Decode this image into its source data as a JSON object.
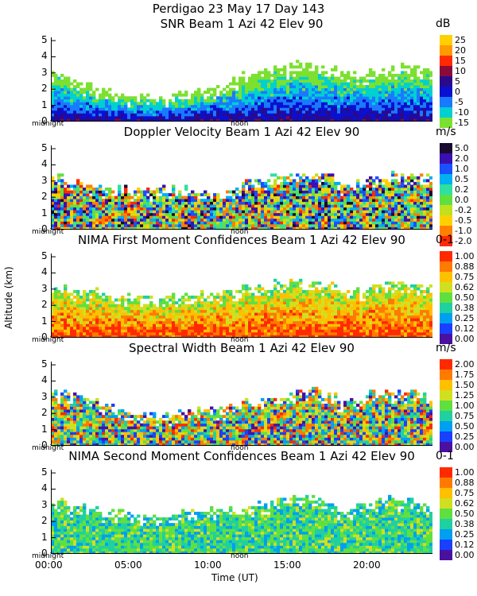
{
  "header": {
    "line1": "Perdigao  23 May 17 Day 143"
  },
  "axes": {
    "y_label": "Altitude (km)",
    "x_label": "Time (UT)",
    "x_ticks": [
      "00:00",
      "05:00",
      "10:00",
      "15:00",
      "20:00"
    ],
    "y_ticks": [
      "0",
      "1",
      "2",
      "3",
      "4",
      "5"
    ],
    "midnight_label": "midnight",
    "noon_label": "noon"
  },
  "chart_data": [
    {
      "type": "heatmap",
      "title": "SNR Beam 1 Azi  42 Elev 90",
      "unit": "dB",
      "xlabel": "Time (UT)",
      "ylabel": "Altitude (km)",
      "xlim": [
        0,
        24
      ],
      "ylim": [
        0,
        5.2
      ],
      "colorbar_labels": [
        "25",
        "20",
        "15",
        "10",
        "5",
        "0",
        "-5",
        "-10",
        "-15"
      ],
      "colorbar_colors": [
        "#ffd000",
        "#ff9a00",
        "#ff2a00",
        "#8a0a3a",
        "#2a0a8a",
        "#0a10d0",
        "#1a7aff",
        "#00d0d0",
        "#7ce030"
      ],
      "data_top_km": [
        3.0,
        2.6,
        2.2,
        1.9,
        1.7,
        1.6,
        1.5,
        1.6,
        1.8,
        2.0,
        2.2,
        2.6,
        3.0,
        3.2,
        3.4,
        3.6,
        3.6,
        3.4,
        3.0,
        2.9,
        3.1,
        3.3,
        3.4,
        3.2
      ]
    },
    {
      "type": "heatmap",
      "title": "Doppler Velocity Beam 1 Azi  42 Elev 90",
      "unit": "m/s",
      "xlabel": "Time (UT)",
      "ylabel": "Altitude (km)",
      "xlim": [
        0,
        24
      ],
      "ylim": [
        0,
        5.2
      ],
      "colorbar_labels": [
        "5.0",
        "2.0",
        "1.0",
        "0.5",
        "0.2",
        "0.0",
        "-0.2",
        "-0.5",
        "-1.0",
        "-2.0"
      ],
      "colorbar_colors": [
        "#1a0a30",
        "#3a10b0",
        "#1a50ff",
        "#00b0f0",
        "#30e0a0",
        "#60e040",
        "#c0e020",
        "#ffd000",
        "#ff8000",
        "#ff2a00"
      ],
      "data_top_km": [
        3.2,
        3.0,
        2.8,
        2.6,
        2.6,
        2.5,
        2.6,
        2.6,
        2.6,
        2.4,
        2.4,
        2.6,
        3.0,
        3.2,
        3.4,
        3.5,
        3.5,
        3.4,
        2.9,
        3.0,
        3.3,
        3.5,
        3.4,
        3.3
      ]
    },
    {
      "type": "heatmap",
      "title": "NIMA First Moment Confidences Beam 1 Azi  42 Elev 90",
      "unit": "0-1",
      "xlabel": "Time (UT)",
      "ylabel": "Altitude (km)",
      "xlim": [
        0,
        24
      ],
      "ylim": [
        0,
        5.2
      ],
      "colorbar_labels": [
        "1.00",
        "0.88",
        "0.75",
        "0.62",
        "0.50",
        "0.38",
        "0.25",
        "0.12",
        "0.00"
      ],
      "colorbar_colors": [
        "#ff2a00",
        "#ff7a00",
        "#ffc000",
        "#d0e020",
        "#60e040",
        "#20d0a0",
        "#00a0f0",
        "#1a40ff",
        "#4a10a0"
      ],
      "data_top_km": [
        3.2,
        3.0,
        2.9,
        2.7,
        2.6,
        2.5,
        2.5,
        2.6,
        2.7,
        2.8,
        2.9,
        3.0,
        3.2,
        3.3,
        3.4,
        3.5,
        3.5,
        3.4,
        2.9,
        3.0,
        3.3,
        3.5,
        3.4,
        3.3
      ]
    },
    {
      "type": "heatmap",
      "title": "Spectral Width Beam 1 Azi  42 Elev 90",
      "unit": "m/s",
      "xlabel": "Time (UT)",
      "ylabel": "Altitude (km)",
      "xlim": [
        0,
        24
      ],
      "ylim": [
        0,
        5.2
      ],
      "colorbar_labels": [
        "2.00",
        "1.75",
        "1.50",
        "1.25",
        "1.00",
        "0.75",
        "0.50",
        "0.25",
        "0.00"
      ],
      "colorbar_colors": [
        "#ff2a00",
        "#ff7a00",
        "#ffc000",
        "#d0e020",
        "#60e040",
        "#20d0a0",
        "#00a0f0",
        "#1a40ff",
        "#4a10a0"
      ],
      "data_top_km": [
        3.3,
        3.2,
        3.0,
        2.6,
        2.2,
        2.0,
        2.0,
        2.0,
        2.1,
        2.2,
        2.3,
        2.4,
        2.8,
        3.0,
        3.2,
        3.4,
        3.4,
        3.2,
        2.7,
        2.9,
        3.3,
        3.4,
        3.3,
        3.2
      ]
    },
    {
      "type": "heatmap",
      "title": "NIMA Second Moment Confidences Beam 1 Azi  42 Elev 90",
      "unit": "0-1",
      "xlabel": "Time (UT)",
      "ylabel": "Altitude (km)",
      "xlim": [
        0,
        24
      ],
      "ylim": [
        0,
        5.2
      ],
      "colorbar_labels": [
        "1.00",
        "0.88",
        "0.75",
        "0.62",
        "0.50",
        "0.38",
        "0.25",
        "0.12",
        "0.00"
      ],
      "colorbar_colors": [
        "#ff2a00",
        "#ff7a00",
        "#ffc000",
        "#d0e020",
        "#60e040",
        "#20d0a0",
        "#00a0f0",
        "#1a40ff",
        "#4a10a0"
      ],
      "data_top_km": [
        3.2,
        3.1,
        2.9,
        2.7,
        2.6,
        2.5,
        2.4,
        2.5,
        2.6,
        2.7,
        2.7,
        2.8,
        3.0,
        3.2,
        3.4,
        3.5,
        3.5,
        3.3,
        2.8,
        3.0,
        3.3,
        3.4,
        3.3,
        3.2
      ]
    }
  ]
}
